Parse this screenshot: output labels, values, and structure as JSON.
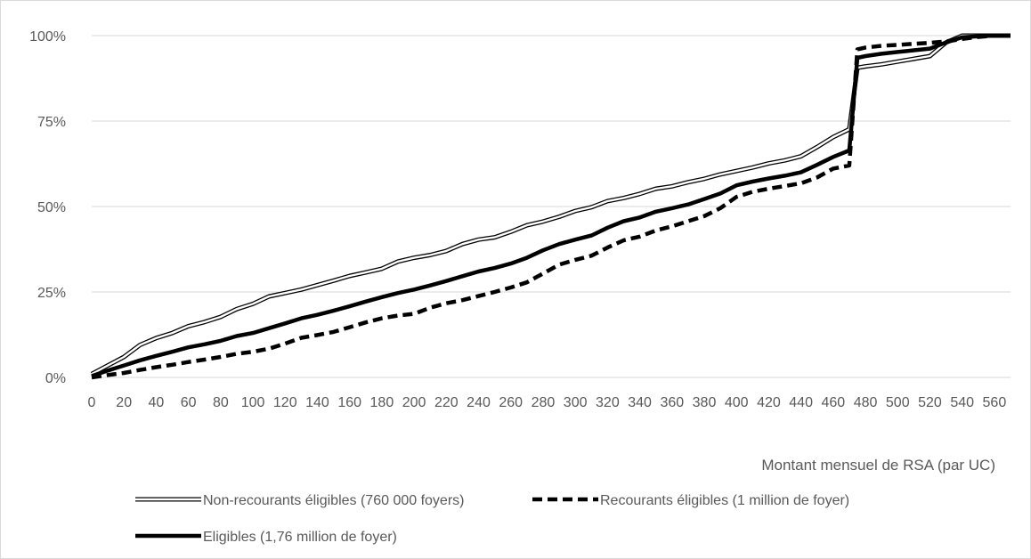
{
  "chart_data": {
    "type": "line",
    "title": "",
    "xlabel": "Montant mensuel de RSA (par UC)",
    "ylabel": "",
    "xlim": [
      0,
      570
    ],
    "ylim": [
      0,
      100
    ],
    "x_ticks": [
      "0",
      "20",
      "40",
      "60",
      "80",
      "100",
      "120",
      "140",
      "160",
      "180",
      "200",
      "220",
      "240",
      "260",
      "280",
      "300",
      "320",
      "340",
      "360",
      "380",
      "400",
      "420",
      "440",
      "460",
      "480",
      "500",
      "520",
      "540",
      "560"
    ],
    "y_ticks": [
      "0%",
      "25%",
      "50%",
      "75%",
      "100%"
    ],
    "y_tick_values": [
      0,
      25,
      50,
      75,
      100
    ],
    "grid": "horizontal",
    "legend_position": "bottom",
    "series": [
      {
        "name": "Non-recourants éligibles (760 000 foyers)",
        "style": "double",
        "color": "#000000",
        "x": [
          0,
          10,
          20,
          30,
          40,
          50,
          60,
          70,
          80,
          90,
          100,
          110,
          120,
          130,
          140,
          150,
          160,
          170,
          180,
          190,
          200,
          210,
          220,
          230,
          240,
          250,
          260,
          270,
          280,
          290,
          300,
          310,
          320,
          330,
          340,
          350,
          360,
          370,
          380,
          390,
          400,
          410,
          420,
          430,
          440,
          450,
          460,
          470,
          475,
          480,
          490,
          500,
          510,
          520,
          530,
          540,
          550,
          560,
          570
        ],
        "y": [
          1,
          3.5,
          6,
          9.5,
          11.5,
          13,
          15,
          16.2,
          17.7,
          20,
          21.5,
          23.7,
          24.7,
          25.7,
          27,
          28.3,
          29.7,
          30.7,
          31.8,
          33.9,
          35,
          35.8,
          37,
          39,
          40.3,
          41,
          42.6,
          44.5,
          45.6,
          47,
          48.7,
          49.8,
          51.6,
          52.5,
          53.7,
          55.2,
          55.9,
          57.1,
          58.1,
          59.4,
          60.4,
          61.4,
          62.6,
          63.5,
          64.7,
          67.4,
          70.3,
          72.6,
          90.6,
          91,
          91.6,
          92.4,
          93.2,
          94,
          98,
          100,
          100,
          100,
          100
        ]
      },
      {
        "name": "Recourants éligibles (1 million de foyer)",
        "style": "dashed",
        "color": "#000000",
        "x": [
          0,
          10,
          20,
          30,
          40,
          50,
          60,
          70,
          80,
          90,
          100,
          110,
          120,
          130,
          140,
          150,
          160,
          170,
          180,
          190,
          200,
          210,
          220,
          230,
          240,
          250,
          260,
          270,
          280,
          290,
          300,
          310,
          320,
          330,
          340,
          350,
          360,
          370,
          380,
          390,
          400,
          410,
          420,
          430,
          440,
          450,
          460,
          470,
          475,
          480,
          490,
          500,
          510,
          520,
          530,
          540,
          550,
          560,
          570
        ],
        "y": [
          0,
          0.7,
          1.3,
          2.2,
          3,
          3.7,
          4.5,
          5.2,
          6,
          6.9,
          7.5,
          8.4,
          9.9,
          11.6,
          12.4,
          13.3,
          14.7,
          16.1,
          17.3,
          18.1,
          18.6,
          20.4,
          21.7,
          22.6,
          23.8,
          25,
          26.3,
          27.8,
          30.4,
          33,
          34.4,
          35.6,
          38,
          40.1,
          41.2,
          43,
          44.2,
          45.7,
          47.2,
          49.5,
          52.8,
          54.3,
          55.2,
          56,
          56.8,
          58.5,
          61.1,
          62,
          96,
          96.5,
          97,
          97.3,
          97.6,
          97.9,
          98.3,
          99,
          99.6,
          100,
          100
        ]
      },
      {
        "name": "Eligibles (1,76 million de foyer)",
        "style": "thick",
        "color": "#000000",
        "x": [
          0,
          10,
          20,
          30,
          40,
          50,
          60,
          70,
          80,
          90,
          100,
          110,
          120,
          130,
          140,
          150,
          160,
          170,
          180,
          190,
          200,
          210,
          220,
          230,
          240,
          250,
          260,
          270,
          280,
          290,
          300,
          310,
          320,
          330,
          340,
          350,
          360,
          370,
          380,
          390,
          400,
          410,
          420,
          430,
          440,
          450,
          460,
          470,
          475,
          480,
          490,
          500,
          510,
          520,
          530,
          540,
          550,
          560,
          570
        ],
        "y": [
          0.4,
          2,
          3.5,
          5,
          6.3,
          7.5,
          8.8,
          9.7,
          10.7,
          12.1,
          13,
          14.4,
          15.8,
          17.3,
          18.3,
          19.5,
          20.8,
          22.2,
          23.5,
          24.7,
          25.7,
          26.9,
          28.2,
          29.6,
          31,
          32,
          33.3,
          35,
          37.2,
          39,
          40.3,
          41.5,
          43.8,
          45.7,
          46.8,
          48.5,
          49.5,
          50.6,
          52.2,
          53.8,
          56.2,
          57.3,
          58.2,
          59,
          60,
          62.2,
          64.5,
          66.4,
          93.5,
          94,
          94.7,
          95.2,
          95.7,
          96.2,
          98,
          99.5,
          99.8,
          100,
          100
        ]
      }
    ]
  }
}
